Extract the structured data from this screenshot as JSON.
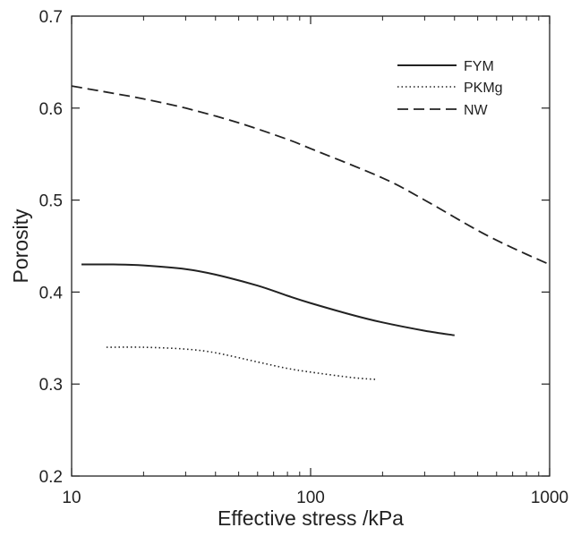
{
  "chart_data": {
    "type": "line",
    "xscale": "log",
    "xlabel": "Effective stress /kPa",
    "ylabel": "Porosity",
    "xlim": [
      10,
      1000
    ],
    "ylim": [
      0.2,
      0.7
    ],
    "xticks": [
      10,
      100,
      1000
    ],
    "xtick_labels": [
      "10",
      "100",
      "1000"
    ],
    "yticks": [
      0.2,
      0.3,
      0.4,
      0.5,
      0.6,
      0.7
    ],
    "ytick_labels": [
      "0.2",
      "0.3",
      "0.4",
      "0.5",
      "0.6",
      "0.7"
    ],
    "grid": false,
    "legend_position": "top-right",
    "series": [
      {
        "name": "FYM",
        "style": "solid",
        "x": [
          11,
          15,
          20,
          30,
          40,
          60,
          80,
          100,
          150,
          200,
          300,
          400
        ],
        "y": [
          0.43,
          0.43,
          0.429,
          0.425,
          0.419,
          0.407,
          0.396,
          0.388,
          0.375,
          0.367,
          0.358,
          0.353
        ]
      },
      {
        "name": "PKMg",
        "style": "dotted",
        "x": [
          14,
          20,
          30,
          40,
          60,
          80,
          100,
          150,
          190
        ],
        "y": [
          0.34,
          0.34,
          0.338,
          0.334,
          0.324,
          0.317,
          0.313,
          0.307,
          0.305
        ]
      },
      {
        "name": "NW",
        "style": "dashed",
        "x": [
          10,
          15,
          20,
          30,
          50,
          80,
          100,
          200,
          300,
          500,
          700,
          1000
        ],
        "y": [
          0.624,
          0.616,
          0.61,
          0.6,
          0.584,
          0.566,
          0.556,
          0.524,
          0.5,
          0.467,
          0.448,
          0.43
        ]
      }
    ]
  }
}
